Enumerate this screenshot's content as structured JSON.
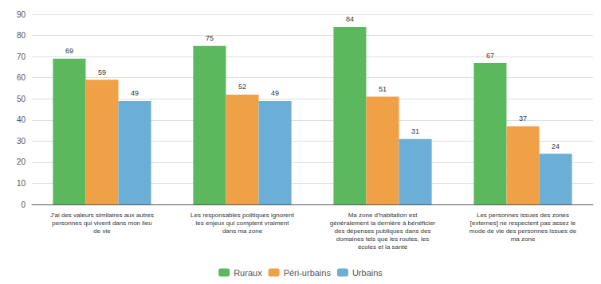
{
  "chart_data": {
    "type": "bar",
    "categories": [
      "J'ai des valeurs similaires aux autres\npersonnes qui vivent dans mon lieu\nde vie",
      "Les responsables politiques ignorent\nles enjeux qui comptent vraiment\ndans ma zone",
      "Ma zone d’habitation est\ngénéralement la dernière à bénéficier\ndes dépenses publiques dans des\ndomaines tels que les routes, les\nécoles et la santé",
      "Les personnes issues des zones\n[externes] ne respectent pas assez le\nmode de vie des personnes issues de\nma zone"
    ],
    "series": [
      {
        "name": "Ruraux",
        "color": "#5cb85c",
        "values": [
          69,
          75,
          84,
          67
        ]
      },
      {
        "name": "Péri-urbains",
        "color": "#f0a045",
        "values": [
          59,
          52,
          51,
          37
        ]
      },
      {
        "name": "Urbains",
        "color": "#6baed6",
        "values": [
          49,
          49,
          31,
          24
        ]
      }
    ],
    "ylim": [
      0,
      90
    ],
    "yticks": [
      0,
      10,
      20,
      30,
      40,
      50,
      60,
      70,
      80,
      90
    ],
    "grid": true,
    "legend": "bottom",
    "data_labels": true
  }
}
